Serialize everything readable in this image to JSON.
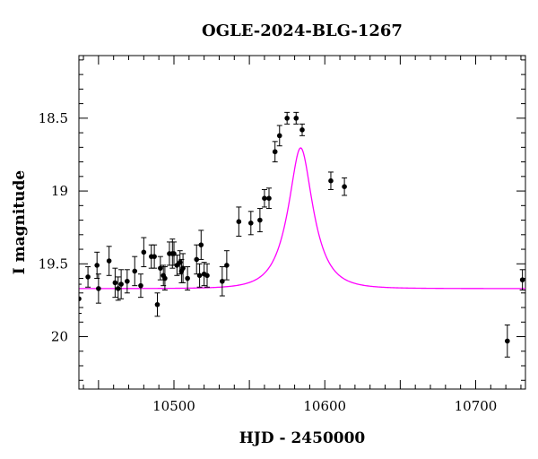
{
  "chart_data": {
    "type": "scatter",
    "title": "OGLE-2024-BLG-1267",
    "xlabel": "HJD - 2450000",
    "ylabel": "I magnitude",
    "xlim": [
      10437,
      10733
    ],
    "ylim": [
      20.36,
      18.07
    ],
    "y_inverted": true,
    "x_ticks": [
      10500,
      10600,
      10700
    ],
    "y_ticks": [
      18.5,
      19,
      19.5,
      20
    ],
    "grid": false,
    "legend": "none",
    "colors": {
      "points": "#000000",
      "model": "#ff00ff"
    },
    "model": {
      "t0": 10584,
      "tE": 15,
      "u0": 0.44,
      "baseline": 19.67
    },
    "series": [
      {
        "x": [
          10437,
          10443,
          10449,
          10450,
          10457,
          10461,
          10463,
          10465,
          10469,
          10474,
          10478,
          10480,
          10485,
          10487,
          10489,
          10491,
          10493,
          10494,
          10497,
          10499,
          10500,
          10502,
          10504,
          10505,
          10506,
          10509,
          10515,
          10517,
          10518,
          10520,
          10522,
          10532,
          10535,
          10543,
          10551,
          10557,
          10560,
          10563,
          10567,
          10570,
          10575,
          10581,
          10585,
          10604,
          10613,
          10721,
          10731
        ],
        "y": [
          19.74,
          19.59,
          19.51,
          19.67,
          19.48,
          19.63,
          19.67,
          19.64,
          19.62,
          19.55,
          19.65,
          19.42,
          19.45,
          19.45,
          19.78,
          19.53,
          19.58,
          19.6,
          19.43,
          19.43,
          19.43,
          19.51,
          19.49,
          19.55,
          19.53,
          19.6,
          19.47,
          19.58,
          19.37,
          19.57,
          19.58,
          19.62,
          19.51,
          19.21,
          19.22,
          19.2,
          19.05,
          19.05,
          18.73,
          18.62,
          18.5,
          18.5,
          18.58,
          18.93,
          18.97,
          20.03,
          19.61
        ],
        "err": [
          0.1,
          0.07,
          0.09,
          0.1,
          0.1,
          0.1,
          0.08,
          0.1,
          0.08,
          0.1,
          0.08,
          0.1,
          0.08,
          0.08,
          0.08,
          0.08,
          0.07,
          0.08,
          0.08,
          0.1,
          0.08,
          0.07,
          0.08,
          0.08,
          0.1,
          0.08,
          0.1,
          0.08,
          0.1,
          0.08,
          0.08,
          0.1,
          0.1,
          0.1,
          0.08,
          0.08,
          0.06,
          0.07,
          0.07,
          0.07,
          0.04,
          0.04,
          0.04,
          0.06,
          0.06,
          0.11,
          0.07
        ]
      }
    ]
  }
}
